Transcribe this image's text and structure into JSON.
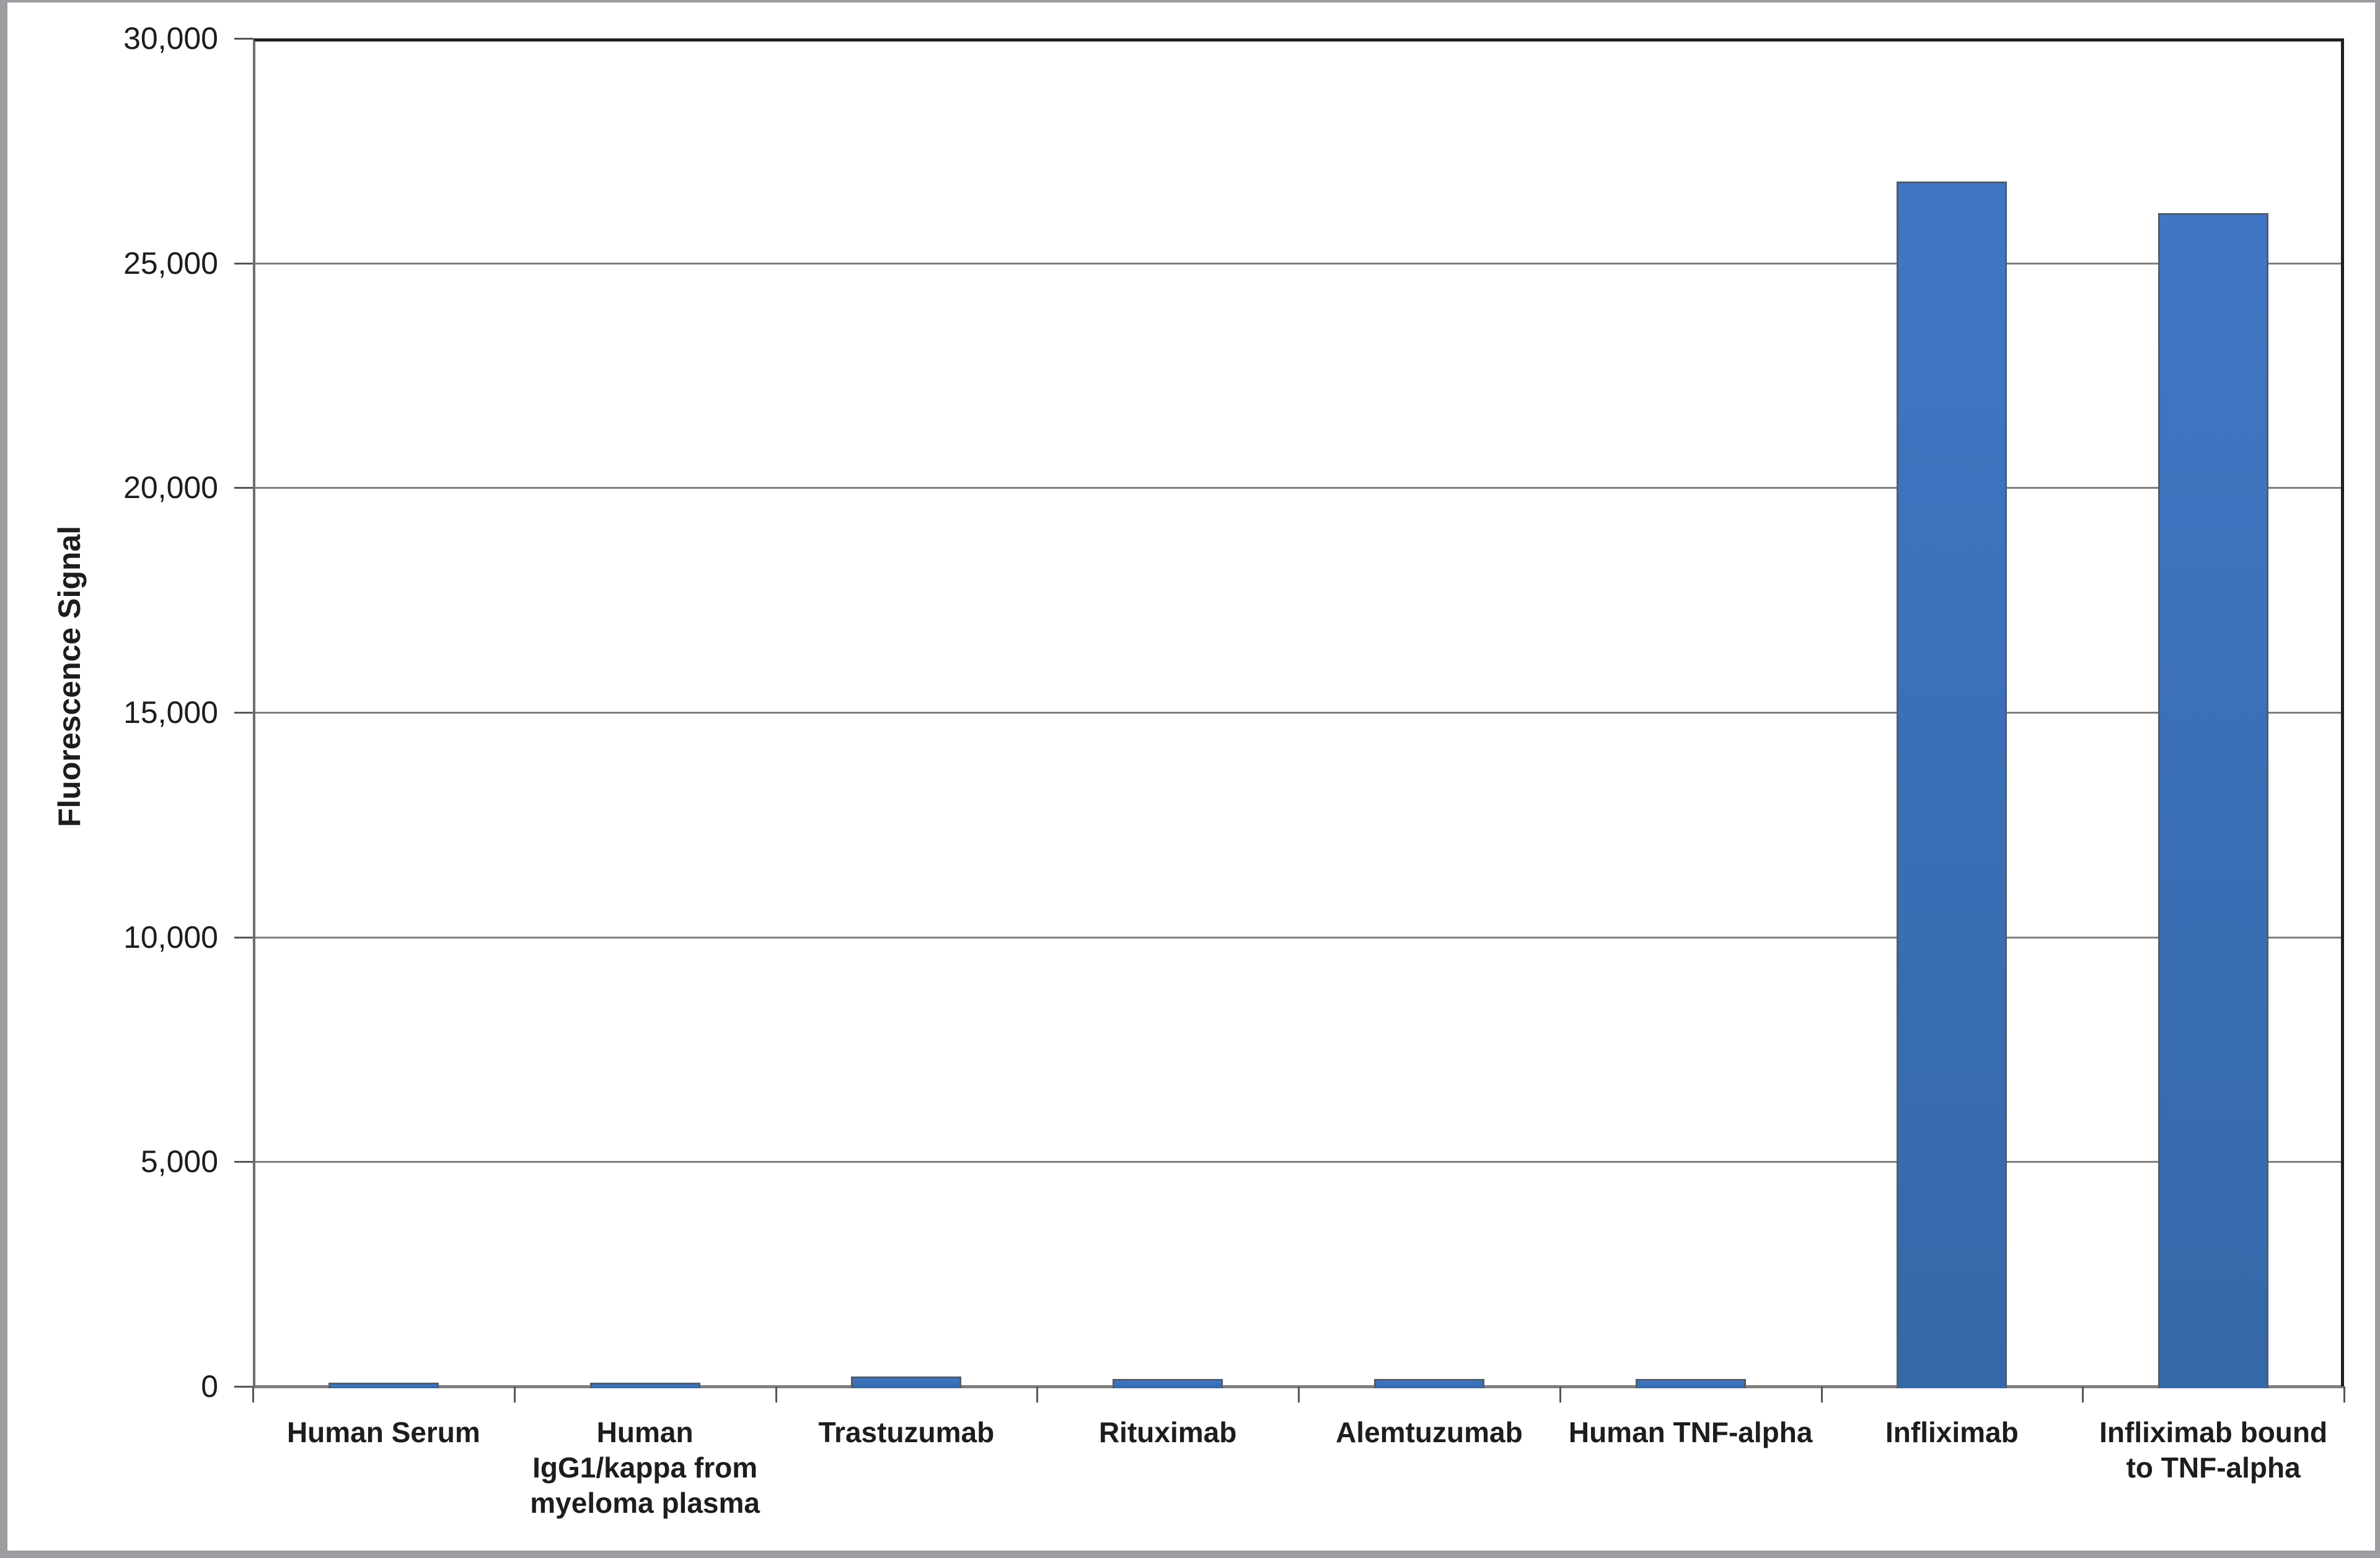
{
  "chart_data": {
    "type": "bar",
    "title": "",
    "xlabel": "",
    "ylabel": "Fluorescence Signal",
    "ylim": [
      0,
      30000
    ],
    "ytick_step": 5000,
    "ytick_labels": [
      "0",
      "5,000",
      "10,000",
      "15,000",
      "20,000",
      "25,000",
      "30,000"
    ],
    "grid": true,
    "legend_position": "none",
    "categories": [
      "Human Serum",
      "Human IgG1/kappa from myeloma plasma",
      "Trastuzumab",
      "Rituximab",
      "Alemtuzumab",
      "Human TNF-alpha",
      "Infliximab",
      "Infliximab bound to TNF-alpha"
    ],
    "category_lines": [
      [
        "Human Serum"
      ],
      [
        "Human",
        "IgG1/kappa from",
        "myeloma plasma"
      ],
      [
        "Trastuzumab"
      ],
      [
        "Rituximab"
      ],
      [
        "Alemtuzumab"
      ],
      [
        "Human TNF-alpha"
      ],
      [
        "Infliximab"
      ],
      [
        "Infliximab bound",
        "to TNF-alpha"
      ]
    ],
    "values": [
      75,
      75,
      200,
      150,
      150,
      150,
      26800,
      26100
    ],
    "series_name": "Fluorescence Signal",
    "colors": {
      "bar_top": "#4077c5",
      "bar_bottom": "#3568a8",
      "bar_border": "#4e5d6d",
      "gridline": "#7f7f7f",
      "baseline": "#7f7f7f",
      "tick": "#565656",
      "plot_border": "#1f1f1f",
      "y_axis_line": "#6d6d6d",
      "text": "#1d1d1d",
      "frame": "#9b9da0",
      "background": "#ffffff"
    }
  }
}
